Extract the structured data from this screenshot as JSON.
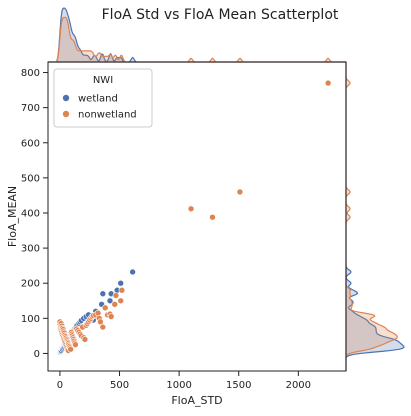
{
  "chart_data": {
    "type": "scatter",
    "title": "FloA Std vs FloA Mean Scatterplot",
    "xlabel": "FloA_STD",
    "ylabel": "FloA_MEAN",
    "xlim": [
      -100,
      2400
    ],
    "ylim": [
      -50,
      830
    ],
    "xticks": [
      0,
      500,
      1000,
      1500,
      2000
    ],
    "yticks": [
      0,
      100,
      200,
      300,
      400,
      500,
      600,
      700,
      800
    ],
    "grid": false,
    "legend": {
      "title": "NWI",
      "placement": "top-left"
    },
    "marginals": {
      "top": "kde",
      "right": "kde"
    },
    "series": [
      {
        "name": "wetland",
        "color": "#4c72b0",
        "points": [
          [
            0,
            4
          ],
          [
            2,
            6
          ],
          [
            5,
            8
          ],
          [
            8,
            10
          ],
          [
            10,
            12
          ],
          [
            12,
            8
          ],
          [
            15,
            14
          ],
          [
            18,
            16
          ],
          [
            20,
            18
          ],
          [
            22,
            12
          ],
          [
            25,
            20
          ],
          [
            28,
            22
          ],
          [
            30,
            15
          ],
          [
            32,
            24
          ],
          [
            35,
            26
          ],
          [
            38,
            18
          ],
          [
            40,
            28
          ],
          [
            42,
            30
          ],
          [
            45,
            22
          ],
          [
            48,
            32
          ],
          [
            50,
            34
          ],
          [
            52,
            26
          ],
          [
            55,
            36
          ],
          [
            58,
            38
          ],
          [
            60,
            30
          ],
          [
            62,
            40
          ],
          [
            65,
            42
          ],
          [
            70,
            44
          ],
          [
            72,
            36
          ],
          [
            75,
            48
          ],
          [
            78,
            40
          ],
          [
            80,
            50
          ],
          [
            85,
            52
          ],
          [
            88,
            46
          ],
          [
            90,
            55
          ],
          [
            95,
            58
          ],
          [
            100,
            60
          ],
          [
            105,
            62
          ],
          [
            110,
            65
          ],
          [
            115,
            68
          ],
          [
            120,
            70
          ],
          [
            125,
            72
          ],
          [
            130,
            75
          ],
          [
            135,
            78
          ],
          [
            140,
            80
          ],
          [
            150,
            82
          ],
          [
            160,
            86
          ],
          [
            170,
            90
          ],
          [
            180,
            94
          ],
          [
            200,
            100
          ],
          [
            220,
            105
          ],
          [
            240,
            110
          ],
          [
            280,
            95
          ],
          [
            300,
            120
          ],
          [
            350,
            140
          ],
          [
            360,
            170
          ],
          [
            420,
            150
          ],
          [
            430,
            170
          ],
          [
            480,
            180
          ],
          [
            510,
            200
          ],
          [
            610,
            232
          ]
        ]
      },
      {
        "name": "nonwetland",
        "color": "#dd8452",
        "points": [
          [
            0,
            90
          ],
          [
            2,
            82
          ],
          [
            5,
            75
          ],
          [
            8,
            70
          ],
          [
            10,
            85
          ],
          [
            12,
            65
          ],
          [
            15,
            60
          ],
          [
            18,
            78
          ],
          [
            20,
            55
          ],
          [
            22,
            72
          ],
          [
            25,
            50
          ],
          [
            28,
            68
          ],
          [
            30,
            45
          ],
          [
            32,
            62
          ],
          [
            35,
            40
          ],
          [
            38,
            58
          ],
          [
            40,
            35
          ],
          [
            42,
            52
          ],
          [
            45,
            30
          ],
          [
            48,
            48
          ],
          [
            50,
            25
          ],
          [
            52,
            44
          ],
          [
            55,
            20
          ],
          [
            58,
            40
          ],
          [
            60,
            15
          ],
          [
            62,
            36
          ],
          [
            65,
            10
          ],
          [
            68,
            32
          ],
          [
            70,
            28
          ],
          [
            72,
            8
          ],
          [
            75,
            24
          ],
          [
            80,
            20
          ],
          [
            85,
            16
          ],
          [
            90,
            12
          ],
          [
            95,
            60
          ],
          [
            100,
            55
          ],
          [
            105,
            50
          ],
          [
            110,
            45
          ],
          [
            115,
            40
          ],
          [
            120,
            35
          ],
          [
            125,
            30
          ],
          [
            130,
            25
          ],
          [
            140,
            70
          ],
          [
            150,
            65
          ],
          [
            160,
            60
          ],
          [
            170,
            55
          ],
          [
            180,
            50
          ],
          [
            190,
            75
          ],
          [
            200,
            45
          ],
          [
            210,
            40
          ],
          [
            220,
            80
          ],
          [
            230,
            85
          ],
          [
            240,
            90
          ],
          [
            250,
            95
          ],
          [
            260,
            100
          ],
          [
            270,
            105
          ],
          [
            280,
            108
          ],
          [
            300,
            110
          ],
          [
            320,
            115
          ],
          [
            330,
            100
          ],
          [
            340,
            90
          ],
          [
            360,
            75
          ],
          [
            380,
            130
          ],
          [
            400,
            110
          ],
          [
            420,
            112
          ],
          [
            430,
            105
          ],
          [
            460,
            140
          ],
          [
            470,
            165
          ],
          [
            510,
            150
          ],
          [
            520,
            180
          ],
          [
            1100,
            412
          ],
          [
            1280,
            388
          ],
          [
            1510,
            460
          ],
          [
            2250,
            770
          ]
        ]
      }
    ]
  }
}
